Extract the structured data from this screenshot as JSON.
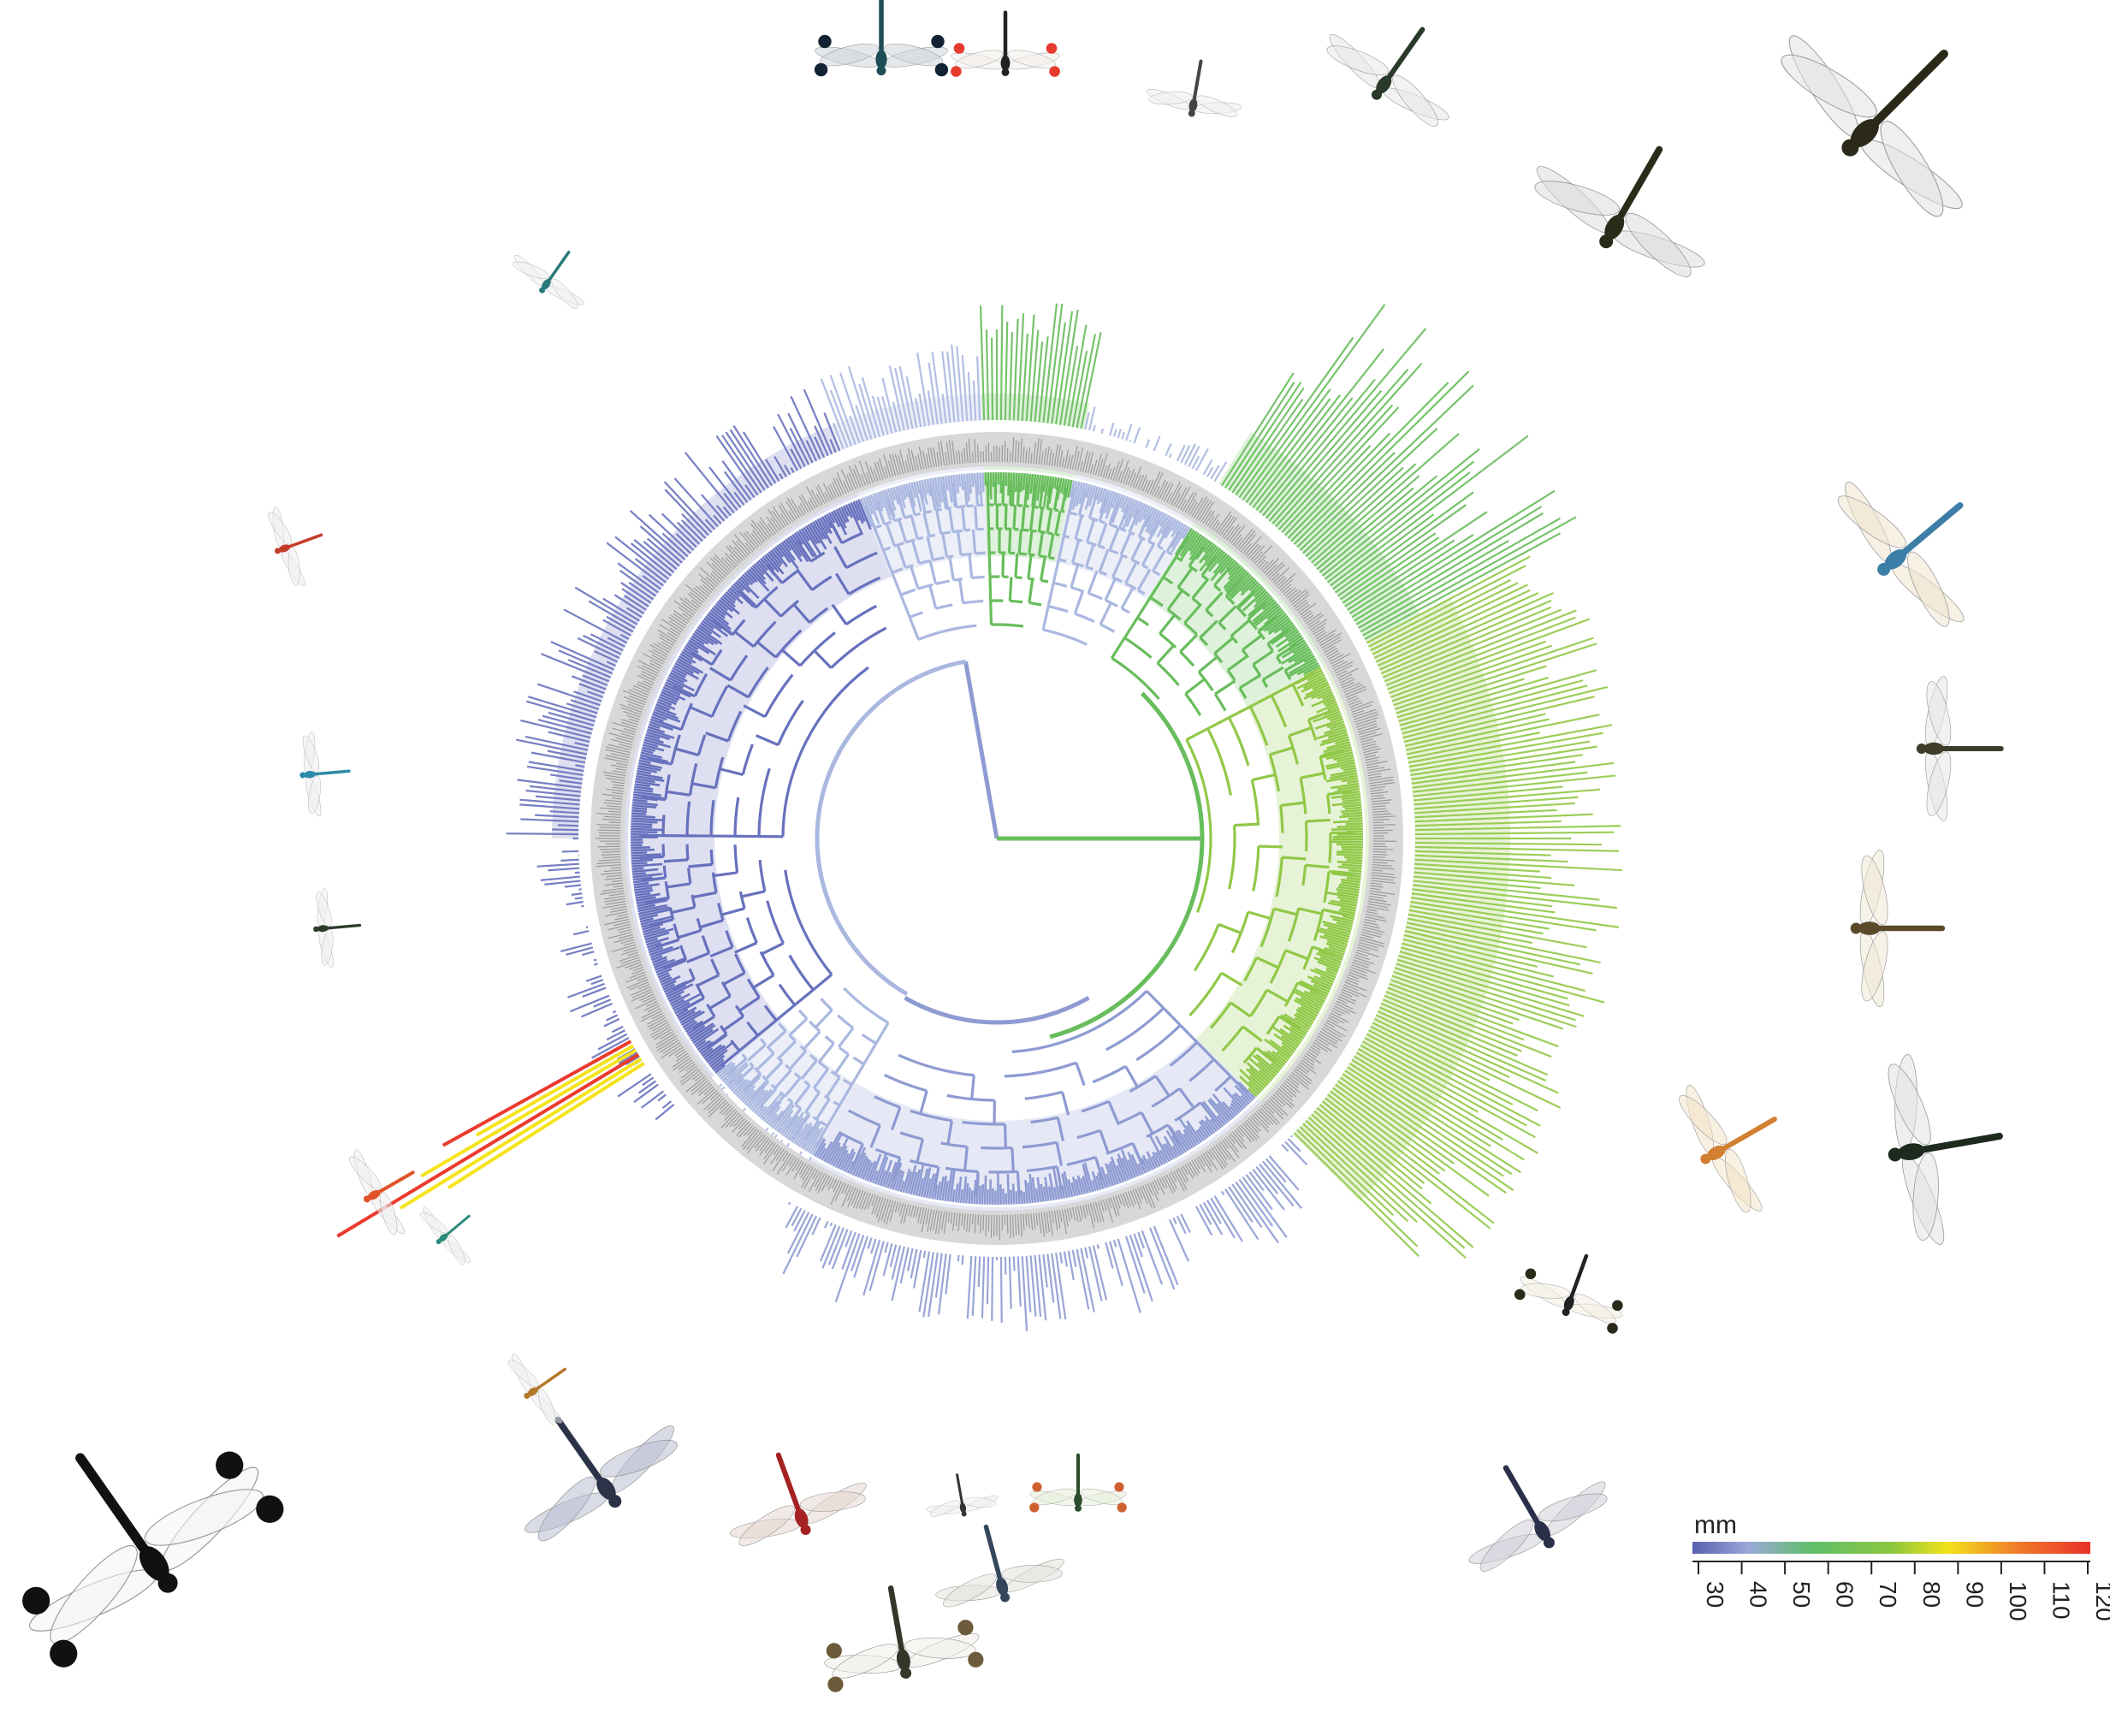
{
  "figure": {
    "type": "circular-phylogeny",
    "subject": "dragonflies and damselflies",
    "colors": {
      "purple_blue": "#6771bd",
      "mid_blue": "#8e9bd2",
      "light_blue": "#aab8e0",
      "green": "#68bd5c",
      "yellow_green": "#91c848",
      "yellow": "#f5e31c",
      "orange": "#f5a623",
      "red": "#ea3a2e",
      "ring_gray": "#d8d8d8",
      "ring_text": "#9a9a9a"
    }
  },
  "legend": {
    "unit": "mm",
    "ticks": [
      "30",
      "40",
      "50",
      "60",
      "70",
      "80",
      "90",
      "100",
      "110",
      "120"
    ],
    "gradient_stops": [
      "#5a5fb0",
      "#9aa8d8",
      "#5fbf6a",
      "#8bc63f",
      "#f2e21a",
      "#f07a2a",
      "#e8312a"
    ]
  },
  "insects": [
    {
      "id": "banded-wing-top-1"
    },
    {
      "id": "red-tipped-damselfly-top"
    },
    {
      "id": "small-damselfly-top"
    },
    {
      "id": "clear-wing-dragonfly-top"
    },
    {
      "id": "large-dragonfly-top-right-1"
    },
    {
      "id": "large-dragonfly-top-right-2"
    },
    {
      "id": "blue-hawker-right"
    },
    {
      "id": "gray-dragonfly-right"
    },
    {
      "id": "brown-dragonfly-right"
    },
    {
      "id": "orange-dragonfly-right"
    },
    {
      "id": "green-eyed-dragonfly-right"
    },
    {
      "id": "pied-dragonfly-bottom-right"
    },
    {
      "id": "dark-dragonfly-bottom-right"
    },
    {
      "id": "white-tipped-helicopter-damselfly"
    },
    {
      "id": "blue-skimmer-bottom"
    },
    {
      "id": "red-dragonfly-bottom"
    },
    {
      "id": "small-damselfly-bottom"
    },
    {
      "id": "yellow-wing-damselfly-bottom"
    },
    {
      "id": "brown-banded-skimmer-bottom"
    },
    {
      "id": "gray-skimmer-bottom"
    },
    {
      "id": "tiny-damselfly-left-1"
    },
    {
      "id": "red-damselfly-left"
    },
    {
      "id": "blue-damselfly-left"
    },
    {
      "id": "dark-damselfly-left"
    },
    {
      "id": "orange-damselfly-left"
    },
    {
      "id": "teal-damselfly-left"
    },
    {
      "id": "tan-damselfly-left"
    }
  ]
}
